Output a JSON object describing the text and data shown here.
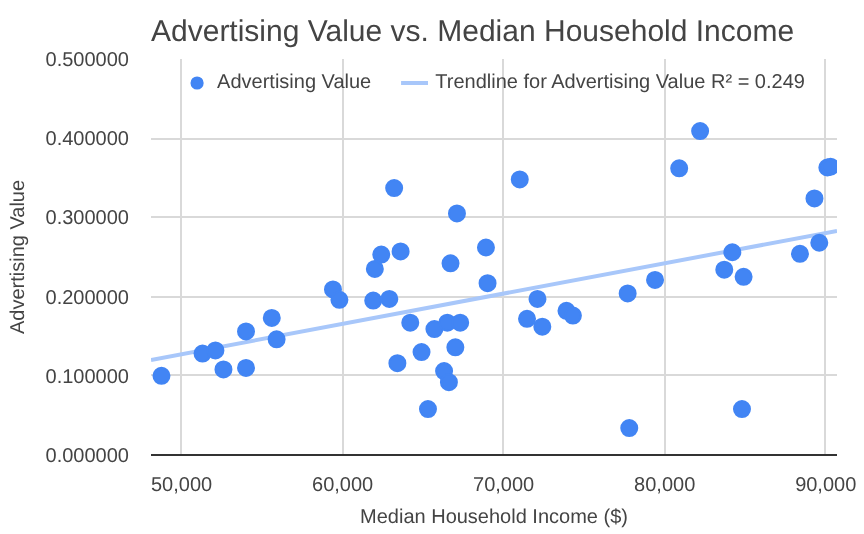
{
  "chart_data": {
    "type": "scatter",
    "title": "Advertising Value vs. Median Household Income",
    "xlabel": "Median Household Income ($)",
    "ylabel": "Advertising Value",
    "x": [
      48750,
      51300,
      52100,
      52600,
      54000,
      54000,
      55600,
      55900,
      59400,
      59800,
      61900,
      62000,
      62400,
      62900,
      63200,
      63400,
      63600,
      64200,
      64900,
      65300,
      65700,
      66300,
      66500,
      66600,
      66700,
      67000,
      67100,
      67300,
      68900,
      69000,
      71000,
      71450,
      72100,
      72400,
      73900,
      74300,
      77700,
      77800,
      79400,
      80900,
      82200,
      83700,
      84200,
      84900,
      84800,
      88400,
      89300,
      89600,
      90100,
      90300
    ],
    "series": [
      {
        "name": "Advertising Value",
        "color": "#4285f4",
        "marker": "circle",
        "values": [
          0.1,
          0.128,
          0.132,
          0.108,
          0.156,
          0.11,
          0.173,
          0.146,
          0.209,
          0.196,
          0.195,
          0.235,
          0.253,
          0.197,
          0.337,
          0.116,
          0.257,
          0.167,
          0.13,
          0.058,
          0.159,
          0.106,
          0.167,
          0.092,
          0.242,
          0.136,
          0.305,
          0.167,
          0.262,
          0.217,
          0.348,
          0.172,
          0.197,
          0.162,
          0.182,
          0.176,
          0.204,
          0.034,
          0.221,
          0.362,
          0.409,
          0.234,
          0.256,
          0.225,
          0.058,
          0.254,
          0.324,
          0.268,
          0.363,
          0.364
        ]
      },
      {
        "name": "Trendline for Advertising Value R² = 0.249",
        "color": "#a8c7fa",
        "type": "line",
        "marker": "none",
        "x": [
          48100,
          90700
        ],
        "values": [
          0.12,
          0.283
        ]
      }
    ],
    "xlim": [
      48100,
      90700
    ],
    "xticks": [
      {
        "value": 50000,
        "label": "50,000"
      },
      {
        "value": 60000,
        "label": "60,000"
      },
      {
        "value": 70000,
        "label": "70,000"
      },
      {
        "value": 80000,
        "label": "80,000"
      },
      {
        "value": 90000,
        "label": "90,000"
      }
    ],
    "ylim": [
      0,
      0.5
    ],
    "yticks": [
      {
        "value": 0,
        "label": "0.000000"
      },
      {
        "value": 0.1,
        "label": "0.100000"
      },
      {
        "value": 0.2,
        "label": "0.200000"
      },
      {
        "value": 0.3,
        "label": "0.300000"
      },
      {
        "value": 0.4,
        "label": "0.400000"
      },
      {
        "value": 0.5,
        "label": "0.500000"
      }
    ],
    "grid": true,
    "legend": "top"
  }
}
